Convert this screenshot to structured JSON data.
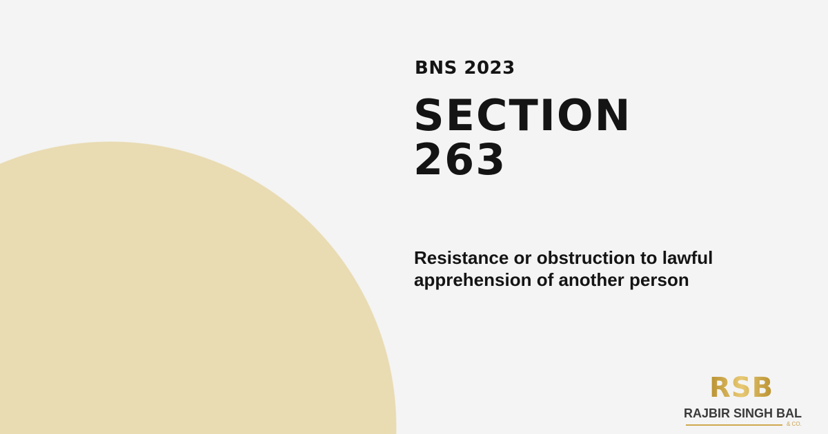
{
  "eyebrow": "BNS 2023",
  "title_line1": "SECTION",
  "title_line2": "263",
  "subtitle": "Resistance or obstruction to lawful apprehension of another person",
  "logo": {
    "mark": "RSB",
    "name": "RAJBIR SINGH BAL",
    "suffix": "& CO."
  },
  "colors": {
    "background": "#f4f4f4",
    "circle": "#e9dbb2",
    "gold": "#c9a24a",
    "text": "#141414"
  }
}
